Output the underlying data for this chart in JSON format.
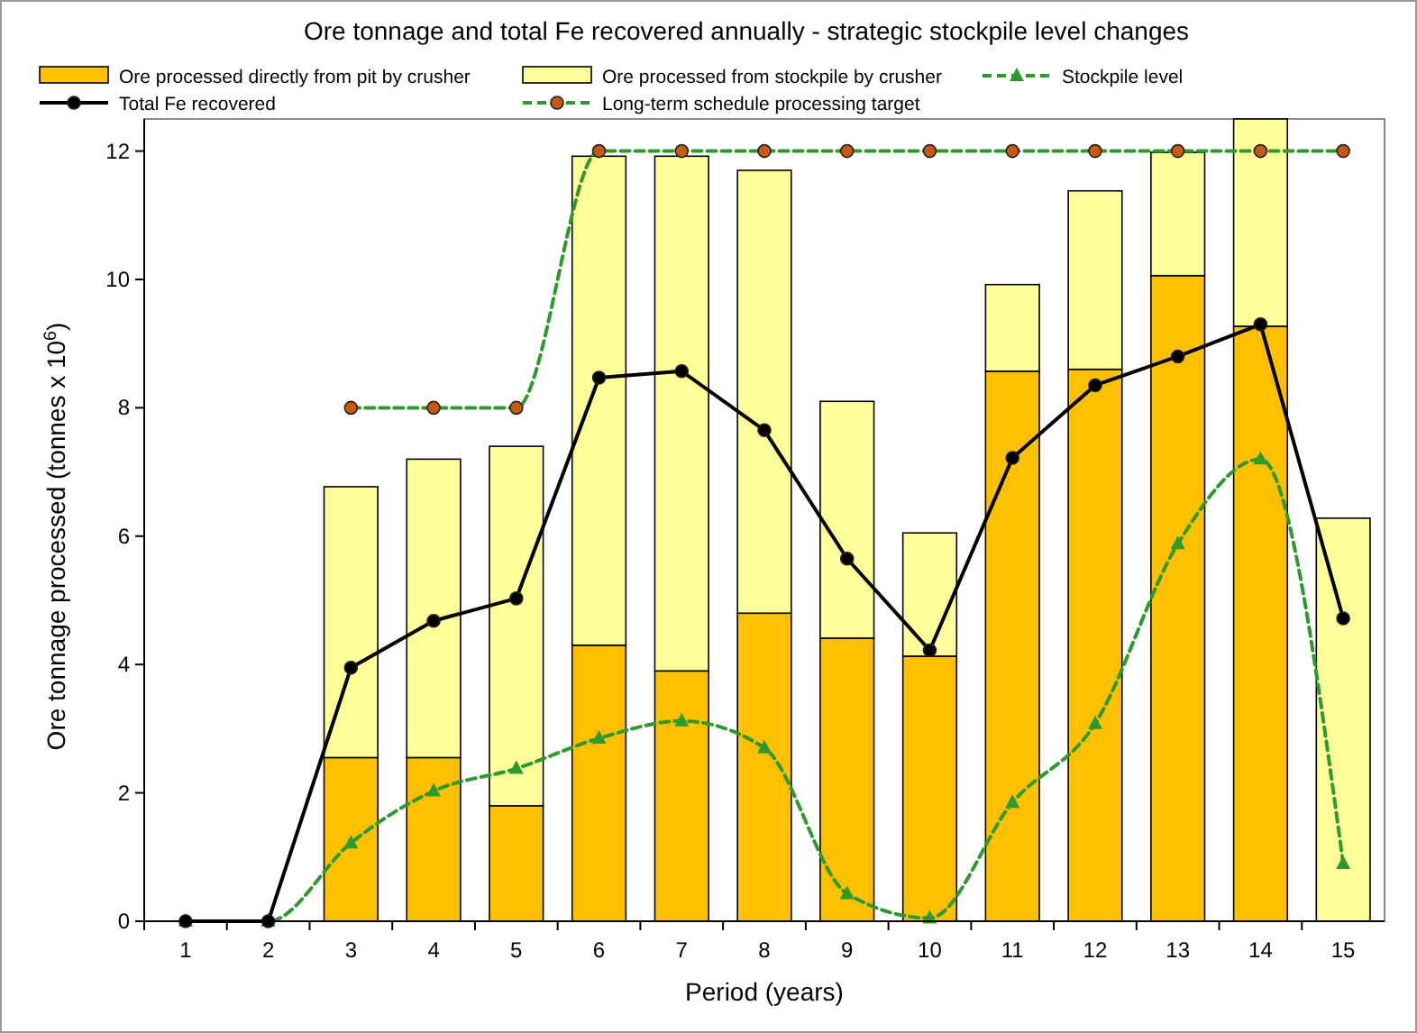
{
  "chart_data": {
    "type": "bar",
    "title": "Ore tonnage and total Fe recovered annually - strategic stockpile level changes",
    "xlabel": "Period (years)",
    "ylabel": "Ore tonnage processed (tonnes x 10$^{6}$)",
    "categories": [
      "1",
      "2",
      "3",
      "4",
      "5",
      "6",
      "7",
      "8",
      "9",
      "10",
      "11",
      "12",
      "13",
      "14",
      "15"
    ],
    "stacked": true,
    "ylim": [
      0,
      12.5
    ],
    "yticks": [
      0,
      2,
      4,
      6,
      8,
      10,
      12
    ],
    "grid": false,
    "legend": "top",
    "series": [
      {
        "name": "Ore processed directly from pit by crusher",
        "color": "#ffc000",
        "values": [
          0,
          0,
          2.55,
          2.55,
          1.8,
          4.3,
          3.9,
          4.8,
          4.41,
          4.13,
          8.57,
          8.6,
          10.06,
          9.27,
          0
        ]
      },
      {
        "name": "Ore processed from stockpile by crusher",
        "color": "#ffff99",
        "values": [
          0,
          0,
          4.22,
          4.65,
          5.6,
          7.62,
          8.02,
          6.9,
          3.69,
          1.92,
          1.35,
          2.78,
          1.92,
          3.23,
          6.28
        ]
      },
      {
        "name": "Stockpile level",
        "type": "line",
        "color": "#2e9a2e",
        "marker": "triangle",
        "line_style": "dashed",
        "values": [
          0,
          0,
          1.22,
          2.03,
          2.38,
          2.85,
          3.12,
          2.7,
          0.43,
          0.05,
          1.85,
          3.08,
          5.88,
          7.2,
          0.9
        ]
      },
      {
        "name": "Total Fe recovered",
        "type": "line",
        "color": "#000000",
        "marker": "circle",
        "line_style": "solid",
        "values": [
          0,
          0,
          3.95,
          4.68,
          5.03,
          8.47,
          8.57,
          7.65,
          5.65,
          4.22,
          7.22,
          8.35,
          8.8,
          9.3,
          4.72
        ]
      },
      {
        "name": "Long-term schedule processing target",
        "type": "line",
        "color": "#2e9a2e",
        "marker": "circle",
        "line_style": "dashed",
        "values": [
          null,
          null,
          8,
          8,
          8,
          12,
          12,
          12,
          12,
          12,
          12,
          12,
          12,
          12,
          12
        ]
      }
    ]
  }
}
